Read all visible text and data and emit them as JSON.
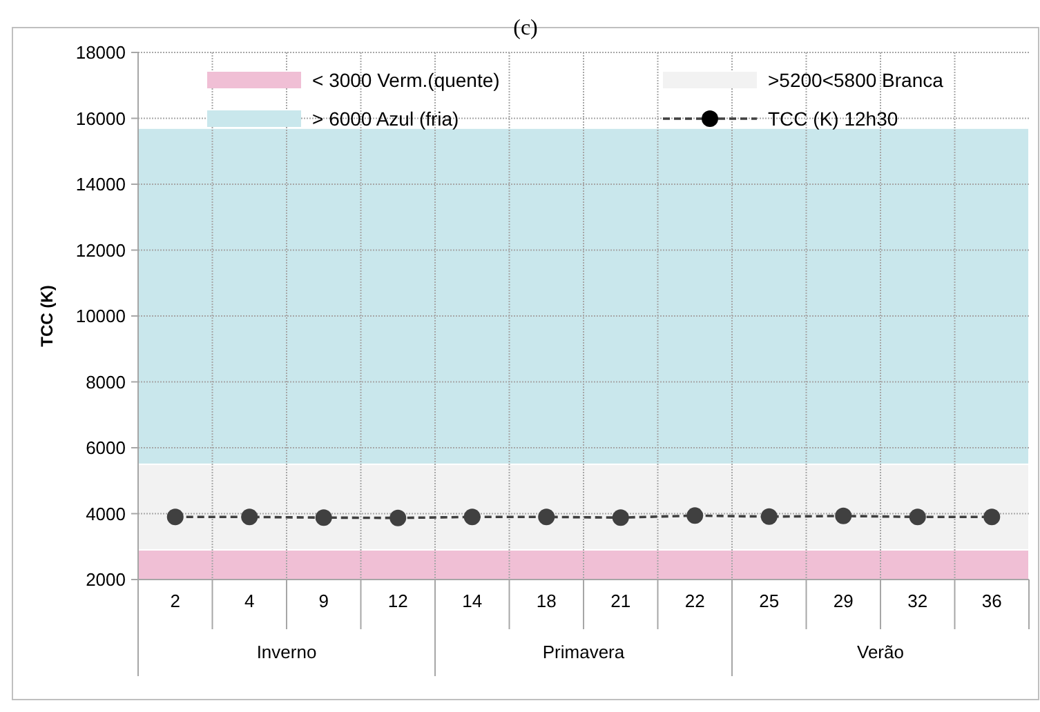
{
  "chart_data": {
    "type": "line",
    "title": "(c)",
    "ylabel": "TCC (K)",
    "categories": [
      "2",
      "4",
      "9",
      "12",
      "14",
      "18",
      "21",
      "22",
      "25",
      "29",
      "32",
      "36"
    ],
    "series": [
      {
        "name": "TCC (K) 12h30",
        "color": "#404040",
        "values": [
          3900,
          3900,
          3880,
          3870,
          3900,
          3900,
          3880,
          3940,
          3910,
          3930,
          3900,
          3900
        ],
        "line_style": "dashed",
        "marker": "circle"
      }
    ],
    "bands": [
      {
        "axis": "y",
        "from": 2000,
        "to": 2900,
        "label": "< 3000 Verm.(quente)",
        "color": "#f0bfd5"
      },
      {
        "axis": "y",
        "from": 2900,
        "to": 5500,
        "label": ">5200<5800 Branca",
        "color": "#f2f2f2"
      },
      {
        "axis": "y",
        "from": 5500,
        "to": 15700,
        "label": "> 6000 Azul (fria)",
        "color": "#c9e7ec"
      }
    ],
    "annotations": [
      "Inverno",
      "Primavera",
      "Verão"
    ],
    "ylim": [
      2000,
      18000
    ],
    "yticks": [
      2000,
      4000,
      6000,
      8000,
      10000,
      12000,
      14000,
      16000,
      18000
    ],
    "grid": true,
    "legend": "top"
  }
}
